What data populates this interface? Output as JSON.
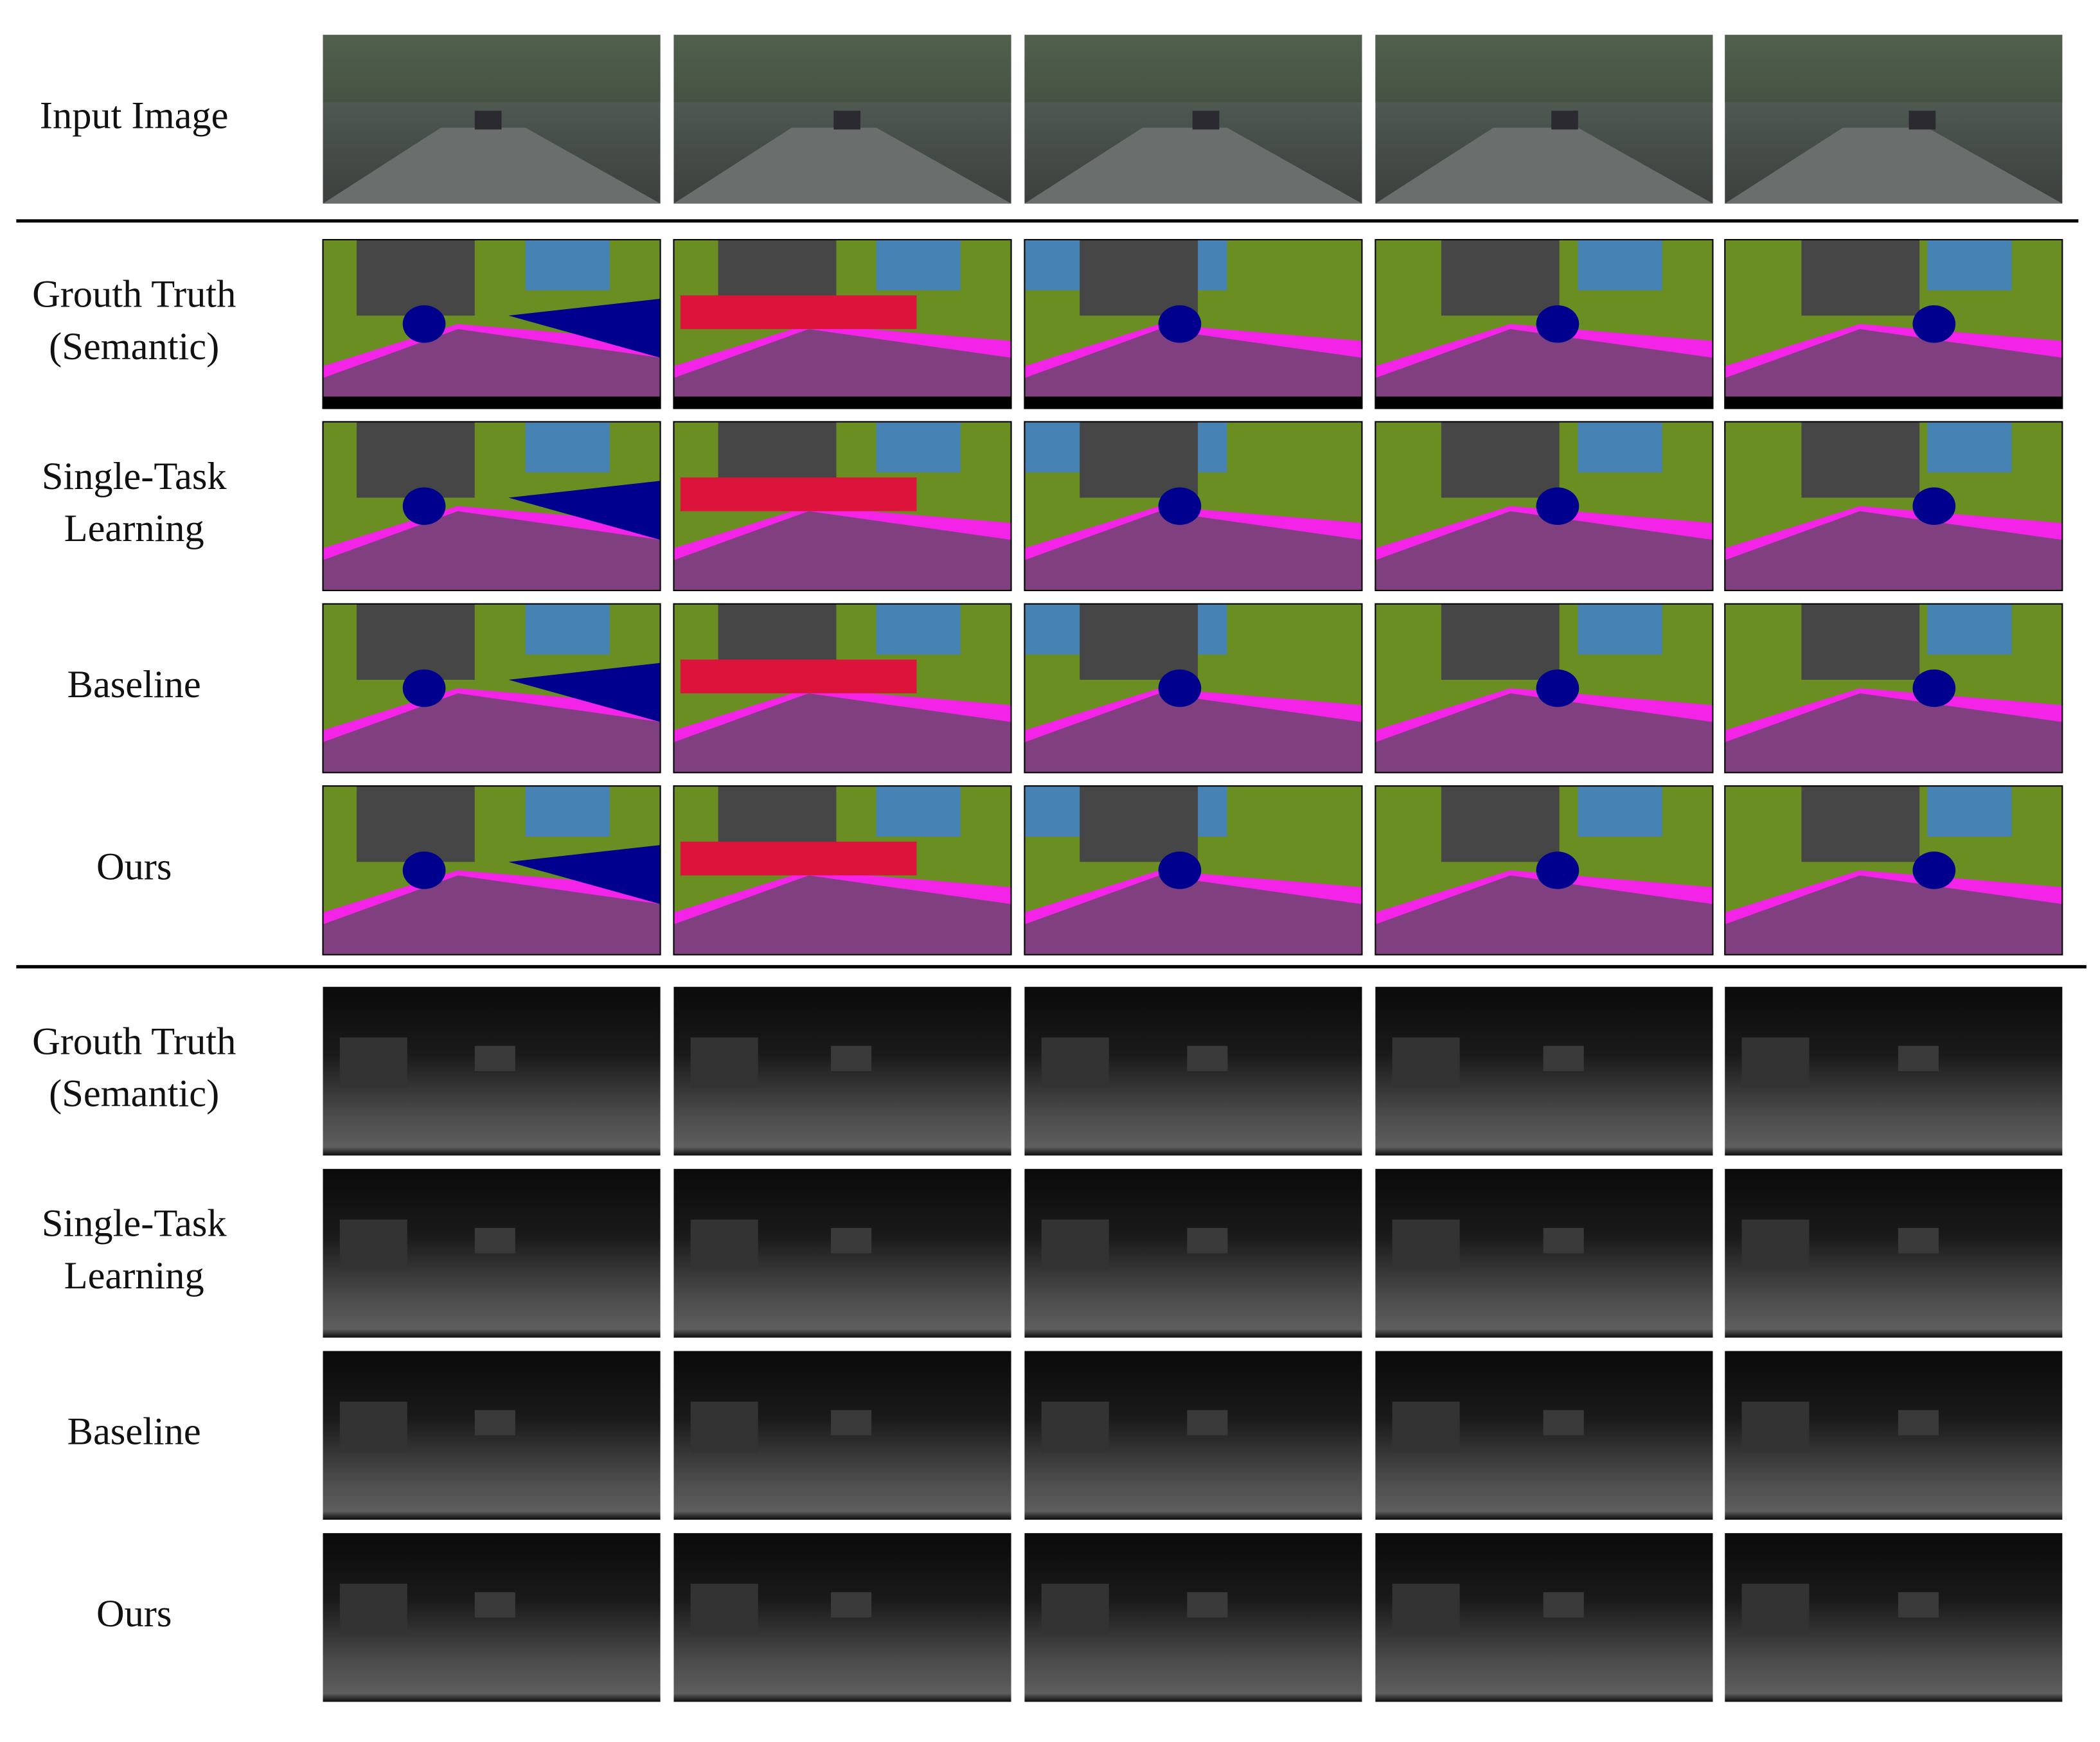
{
  "rows": [
    {
      "label": [
        "Input Image"
      ]
    },
    {
      "label": [
        "Grouth Truth",
        "(Semantic)"
      ]
    },
    {
      "label": [
        "Single-Task",
        "Learning"
      ]
    },
    {
      "label": [
        "Baseline"
      ]
    },
    {
      "label": [
        "Ours"
      ]
    },
    {
      "label": [
        "Grouth Truth",
        "(Semantic)"
      ]
    },
    {
      "label": [
        "Single-Task",
        "Learning"
      ]
    },
    {
      "label": [
        "Baseline"
      ]
    },
    {
      "label": [
        "Ours"
      ]
    }
  ]
}
